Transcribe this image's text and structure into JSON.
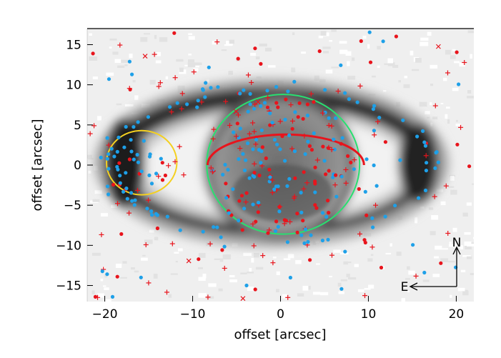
{
  "chart_data": {
    "type": "scatter",
    "title": "",
    "xlabel": "offset [arcsec]",
    "ylabel": "offset [arcsec]",
    "xlim": [
      -22,
      22
    ],
    "ylim": [
      -17,
      17
    ],
    "xticks": [
      -20,
      -10,
      0,
      10,
      20
    ],
    "yticks": [
      -15,
      -10,
      -5,
      0,
      5,
      10,
      15
    ],
    "xtick_labels": [
      "−20",
      "−10",
      "0",
      "10",
      "20"
    ],
    "ytick_labels": [
      "−15",
      "−10",
      "−5",
      "0",
      "5",
      "10",
      "15"
    ],
    "grid": false,
    "background_image": "greyscale ring-shaped nebula intensity map",
    "colors": {
      "red": "#e8141c",
      "blue": "#1ea0e8",
      "green": "#28e070",
      "yellow": "#f4d020",
      "dark_red": "#c81414"
    },
    "shapes": [
      {
        "kind": "circle",
        "color": "green",
        "center": [
          0.3,
          0.1
        ],
        "radius": 8.7
      },
      {
        "kind": "circle",
        "color": "yellow",
        "center": [
          -15.8,
          0.3
        ],
        "radius": 4.0
      },
      {
        "kind": "half-ellipse",
        "color": "red",
        "center": [
          0.6,
          0
        ],
        "radii": [
          8.9,
          3.8
        ]
      }
    ],
    "compass": {
      "north": "N",
      "east": "E"
    },
    "series": []
  }
}
